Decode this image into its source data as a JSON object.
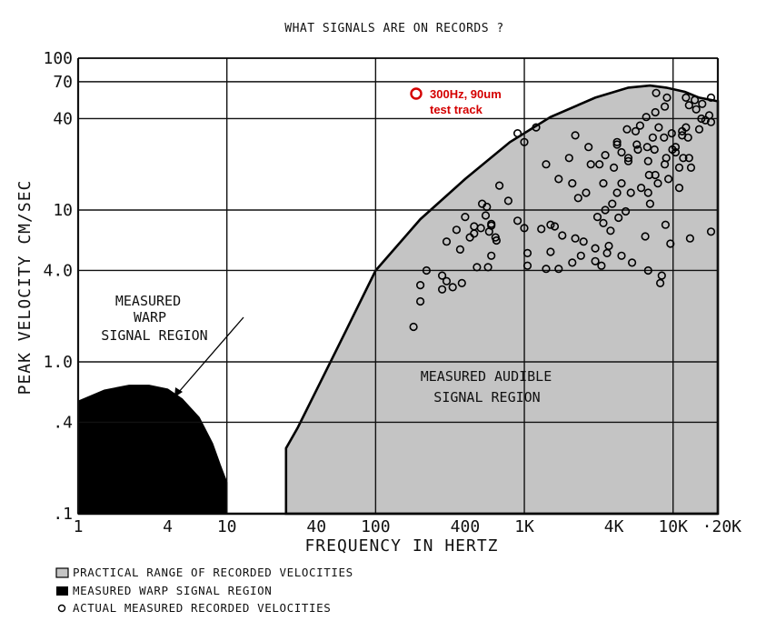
{
  "colors": {
    "audible_fill": "#c4c4c4",
    "warp_fill": "#000000",
    "grid": "#111111",
    "annotation": "#d40000"
  },
  "chart_data": {
    "type": "scatter",
    "title": "WHAT SIGNALS ARE ON RECORDS ?",
    "xlabel": "FREQUENCY IN HERTZ",
    "ylabel": "PEAK VELOCITY CM/SEC",
    "x_scale": "log",
    "y_scale": "log",
    "xlim": [
      1,
      20000
    ],
    "ylim": [
      0.1,
      100
    ],
    "grid": true,
    "x_tick_labels": [
      {
        "value": 1,
        "label": "1"
      },
      {
        "value": 4,
        "label": "4"
      },
      {
        "value": 10,
        "label": "10"
      },
      {
        "value": 40,
        "label": "40"
      },
      {
        "value": 100,
        "label": "100"
      },
      {
        "value": 400,
        "label": "400"
      },
      {
        "value": 1000,
        "label": "1K"
      },
      {
        "value": 4000,
        "label": "4K"
      },
      {
        "value": 10000,
        "label": "10K"
      },
      {
        "value": 20000,
        "label": "·20K"
      }
    ],
    "y_tick_labels": [
      {
        "value": 100,
        "label": "100"
      },
      {
        "value": 70,
        "label": "70"
      },
      {
        "value": 40,
        "label": "40"
      },
      {
        "value": 10,
        "label": "10"
      },
      {
        "value": 4,
        "label": "4.0"
      },
      {
        "value": 1,
        "label": "1.0"
      },
      {
        "value": 0.4,
        "label": ".4"
      },
      {
        "value": 0.1,
        "label": ".1"
      }
    ],
    "region_labels": {
      "warp": [
        "MEASURED",
        "WARP",
        "SIGNAL REGION"
      ],
      "audible": [
        "MEASURED AUDIBLE",
        "SIGNAL REGION"
      ]
    },
    "audible_region_boundary": [
      [
        25,
        0.1
      ],
      [
        25,
        0.27
      ],
      [
        30,
        0.37
      ],
      [
        40,
        0.65
      ],
      [
        60,
        1.45
      ],
      [
        100,
        4.0
      ],
      [
        200,
        8.7
      ],
      [
        400,
        16
      ],
      [
        800,
        28
      ],
      [
        1500,
        41
      ],
      [
        3000,
        55
      ],
      [
        5000,
        64
      ],
      [
        7000,
        66
      ],
      [
        9000,
        64
      ],
      [
        12000,
        60
      ],
      [
        15000,
        55
      ],
      [
        20000,
        52
      ],
      [
        20000,
        0.1
      ]
    ],
    "warp_region_boundary": [
      [
        1,
        0.1
      ],
      [
        1,
        0.55
      ],
      [
        1.5,
        0.65
      ],
      [
        2.2,
        0.7
      ],
      [
        3,
        0.7
      ],
      [
        4,
        0.66
      ],
      [
        5,
        0.57
      ],
      [
        6.5,
        0.43
      ],
      [
        8,
        0.29
      ],
      [
        9,
        0.21
      ],
      [
        10,
        0.16
      ],
      [
        10,
        0.1
      ]
    ],
    "series": [
      {
        "name": "ACTUAL MEASURED RECORDED VELOCITIES",
        "points": [
          [
            180,
            1.7
          ],
          [
            200,
            2.5
          ],
          [
            200,
            3.2
          ],
          [
            220,
            4.0
          ],
          [
            280,
            3.7
          ],
          [
            300,
            3.4
          ],
          [
            380,
            3.3
          ],
          [
            280,
            3.0
          ],
          [
            330,
            3.1
          ],
          [
            300,
            6.2
          ],
          [
            350,
            7.4
          ],
          [
            370,
            5.5
          ],
          [
            430,
            6.6
          ],
          [
            400,
            9.0
          ],
          [
            460,
            7.0
          ],
          [
            510,
            7.6
          ],
          [
            520,
            11
          ],
          [
            460,
            7.8
          ],
          [
            550,
            9.2
          ],
          [
            600,
            7.9
          ],
          [
            560,
            10.5
          ],
          [
            600,
            8.1
          ],
          [
            680,
            14.5
          ],
          [
            650,
            6.3
          ],
          [
            580,
            7.2
          ],
          [
            640,
            6.6
          ],
          [
            480,
            4.2
          ],
          [
            570,
            4.2
          ],
          [
            600,
            5.0
          ],
          [
            780,
            11.5
          ],
          [
            900,
            32
          ],
          [
            1000,
            28
          ],
          [
            1200,
            35
          ],
          [
            900,
            8.5
          ],
          [
            1000,
            7.6
          ],
          [
            1050,
            5.2
          ],
          [
            1050,
            4.3
          ],
          [
            1400,
            20
          ],
          [
            1500,
            8.0
          ],
          [
            1300,
            7.5
          ],
          [
            1500,
            5.3
          ],
          [
            1700,
            4.1
          ],
          [
            1400,
            4.1
          ],
          [
            1800,
            6.8
          ],
          [
            1700,
            16
          ],
          [
            1600,
            7.8
          ],
          [
            2000,
            22
          ],
          [
            2100,
            4.5
          ],
          [
            2200,
            6.5
          ],
          [
            2100,
            15
          ],
          [
            2300,
            12
          ],
          [
            2400,
            5.0
          ],
          [
            2200,
            31
          ],
          [
            2500,
            6.2
          ],
          [
            2700,
            26
          ],
          [
            2800,
            20
          ],
          [
            2600,
            13
          ],
          [
            3000,
            4.6
          ],
          [
            3000,
            5.6
          ],
          [
            3100,
            9.0
          ],
          [
            3200,
            20
          ],
          [
            3400,
            8.2
          ],
          [
            3400,
            15
          ],
          [
            3500,
            23
          ],
          [
            3300,
            4.3
          ],
          [
            3600,
            5.2
          ],
          [
            3700,
            5.8
          ],
          [
            3500,
            10
          ],
          [
            3800,
            7.3
          ],
          [
            3900,
            11
          ],
          [
            4000,
            19
          ],
          [
            4200,
            28
          ],
          [
            4200,
            13
          ],
          [
            4200,
            27
          ],
          [
            4500,
            5.0
          ],
          [
            4300,
            8.9
          ],
          [
            4500,
            24
          ],
          [
            4500,
            15
          ],
          [
            4800,
            9.8
          ],
          [
            5000,
            22
          ],
          [
            4900,
            34
          ],
          [
            5000,
            21
          ],
          [
            5300,
            4.5
          ],
          [
            5200,
            13
          ],
          [
            5600,
            33
          ],
          [
            5700,
            27
          ],
          [
            5800,
            25
          ],
          [
            6100,
            14
          ],
          [
            6000,
            36
          ],
          [
            6600,
            41
          ],
          [
            6700,
            26
          ],
          [
            6800,
            21
          ],
          [
            6900,
            17
          ],
          [
            6800,
            13
          ],
          [
            6500,
            6.7
          ],
          [
            6800,
            4.0
          ],
          [
            7000,
            11
          ],
          [
            7300,
            30
          ],
          [
            7500,
            25
          ],
          [
            7600,
            44
          ],
          [
            7700,
            59
          ],
          [
            7600,
            17
          ],
          [
            7900,
            15
          ],
          [
            8000,
            35
          ],
          [
            8200,
            3.3
          ],
          [
            8400,
            3.7
          ],
          [
            8700,
            30
          ],
          [
            8900,
            8
          ],
          [
            8800,
            20
          ],
          [
            8800,
            48
          ],
          [
            9100,
            55
          ],
          [
            9000,
            22
          ],
          [
            9300,
            16
          ],
          [
            9600,
            6
          ],
          [
            9800,
            32
          ],
          [
            9900,
            25
          ],
          [
            10400,
            26
          ],
          [
            10400,
            24
          ],
          [
            11000,
            19
          ],
          [
            11000,
            14
          ],
          [
            11500,
            31
          ],
          [
            11500,
            33
          ],
          [
            11700,
            22
          ],
          [
            12200,
            35
          ],
          [
            12600,
            30
          ],
          [
            12800,
            22
          ],
          [
            12200,
            55
          ],
          [
            12800,
            49
          ],
          [
            13000,
            6.5
          ],
          [
            13200,
            19
          ],
          [
            14000,
            53
          ],
          [
            14300,
            46
          ],
          [
            15000,
            34
          ],
          [
            15700,
            50
          ],
          [
            15500,
            40
          ],
          [
            16500,
            39
          ],
          [
            17500,
            42
          ],
          [
            18000,
            38
          ],
          [
            18000,
            55
          ],
          [
            18000,
            7.2
          ]
        ]
      }
    ],
    "annotation": {
      "label_line1": "300Hz, 90um",
      "label_line2": "test track"
    },
    "legend": [
      {
        "swatch": "gray-square",
        "label": "PRACTICAL RANGE OF RECORDED VELOCITIES"
      },
      {
        "swatch": "black-square",
        "label": "MEASURED WARP SIGNAL REGION"
      },
      {
        "swatch": "open-circle",
        "label": "ACTUAL MEASURED RECORDED VELOCITIES"
      }
    ]
  }
}
